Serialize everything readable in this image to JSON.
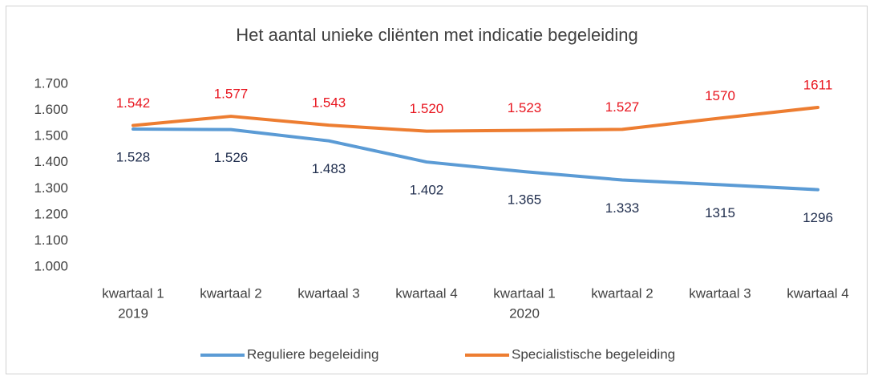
{
  "chart_data": {
    "type": "line",
    "title": "Het aantal unieke cliënten met indicatie begeleiding",
    "categories": [
      "kwartaal 1",
      "kwartaal 2",
      "kwartaal 3",
      "kwartaal 4",
      "kwartaal 1",
      "kwartaal 2",
      "kwartaal 3",
      "kwartaal 4"
    ],
    "x_groups": [
      "2019",
      null,
      null,
      null,
      "2020",
      null,
      null,
      null
    ],
    "series": [
      {
        "name": "Reguliere begeleiding",
        "color": "#5b9bd5",
        "label_color": "#1f2d4d",
        "values": [
          1528,
          1526,
          1483,
          1402,
          1365,
          1333,
          1315,
          1296
        ],
        "value_labels": [
          "1.528",
          "1.526",
          "1.483",
          "1.402",
          "1.365",
          "1.333",
          "1315",
          "1296"
        ]
      },
      {
        "name": "Specialistische begeleiding",
        "color": "#ed7d31",
        "label_color": "#e8141e",
        "values": [
          1542,
          1577,
          1543,
          1520,
          1523,
          1527,
          1570,
          1611
        ],
        "value_labels": [
          "1.542",
          "1.577",
          "1.543",
          "1.520",
          "1.523",
          "1.527",
          "1570",
          "1611"
        ]
      }
    ],
    "ylim": [
      1000,
      1700
    ],
    "yticks": [
      {
        "value": 1000,
        "label": "1.000"
      },
      {
        "value": 1100,
        "label": "1.100"
      },
      {
        "value": 1200,
        "label": "1.200"
      },
      {
        "value": 1300,
        "label": "1.300"
      },
      {
        "value": 1400,
        "label": "1.400"
      },
      {
        "value": 1500,
        "label": "1.500"
      },
      {
        "value": 1600,
        "label": "1.600"
      },
      {
        "value": 1700,
        "label": "1.700"
      }
    ],
    "legend": "bottom"
  }
}
